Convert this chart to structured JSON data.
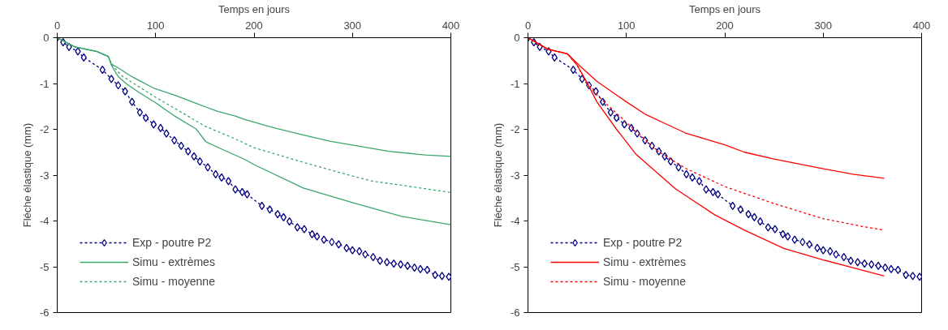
{
  "chart_data": [
    {
      "type": "line",
      "xlabel": "Temps en jours",
      "ylabel": "Fléche élastique (mm)",
      "xlim": [
        0,
        400
      ],
      "ylim": [
        -6,
        0
      ],
      "xticks": [
        0,
        100,
        200,
        300,
        400
      ],
      "yticks": [
        0,
        -1,
        -2,
        -3,
        -4,
        -5,
        -6
      ],
      "grid": false,
      "legend": "bottom left",
      "series": [
        {
          "name": "Exp - poutre P2",
          "color": "#000080",
          "marker": "diamond",
          "line_style": "dotted",
          "x": [
            0,
            6,
            12,
            21,
            27,
            46,
            55,
            62,
            69,
            76,
            84,
            90,
            98,
            105,
            111,
            119,
            126,
            133,
            139,
            145,
            153,
            161,
            167,
            174,
            181,
            188,
            193,
            208,
            216,
            224,
            230,
            236,
            244,
            251,
            259,
            264,
            271,
            279,
            286,
            294,
            300,
            307,
            313,
            321,
            328,
            335,
            342,
            349,
            356,
            363,
            369,
            376,
            384,
            391,
            398
          ],
          "values": [
            0,
            -0.1,
            -0.2,
            -0.3,
            -0.43,
            -0.7,
            -0.9,
            -1.04,
            -1.17,
            -1.4,
            -1.63,
            -1.75,
            -1.89,
            -1.97,
            -2.09,
            -2.24,
            -2.36,
            -2.48,
            -2.59,
            -2.7,
            -2.83,
            -2.98,
            -3.05,
            -3.13,
            -3.31,
            -3.37,
            -3.42,
            -3.67,
            -3.75,
            -3.85,
            -3.92,
            -4.01,
            -4.14,
            -4.18,
            -4.29,
            -4.34,
            -4.41,
            -4.46,
            -4.51,
            -4.59,
            -4.64,
            -4.66,
            -4.73,
            -4.79,
            -4.87,
            -4.9,
            -4.93,
            -4.95,
            -4.98,
            -5.02,
            -5.05,
            -5.07,
            -5.18,
            -5.2,
            -5.22
          ]
        },
        {
          "name": "Simu - extrèmes",
          "color": "#3aa76d",
          "marker": "none",
          "line_style": "solid",
          "x": [
            0,
            18,
            40,
            52,
            55,
            65,
            72,
            81,
            99,
            120,
            141,
            163,
            181,
            190,
            217,
            247,
            277,
            307,
            337,
            374,
            400
          ],
          "values": [
            0,
            -0.2,
            -0.3,
            -0.41,
            -0.57,
            -0.7,
            -0.8,
            -0.91,
            -1.11,
            -1.26,
            -1.43,
            -1.61,
            -1.71,
            -1.78,
            -1.95,
            -2.11,
            -2.26,
            -2.37,
            -2.48,
            -2.56,
            -2.59
          ]
        },
        {
          "color": "#3aa76d",
          "marker": "none",
          "line_style": "solid",
          "x": [
            0,
            18,
            40,
            52,
            55,
            62,
            70,
            80,
            100,
            120,
            141,
            151,
            170,
            190,
            200,
            250,
            300,
            350,
            400
          ],
          "values": [
            0,
            -0.2,
            -0.3,
            -0.41,
            -0.6,
            -0.85,
            -1.0,
            -1.15,
            -1.42,
            -1.72,
            -1.99,
            -2.27,
            -2.46,
            -2.65,
            -2.77,
            -3.28,
            -3.6,
            -3.9,
            -4.08
          ]
        },
        {
          "name": "Simu - moyenne",
          "color": "#3aa76d",
          "marker": "none",
          "line_style": "dotted",
          "x": [
            0,
            18,
            40,
            52,
            56,
            65,
            80,
            100,
            120,
            150,
            180,
            200,
            250,
            300,
            320,
            350,
            375,
            400
          ],
          "values": [
            0,
            -0.2,
            -0.3,
            -0.42,
            -0.6,
            -0.82,
            -1.03,
            -1.3,
            -1.55,
            -1.93,
            -2.2,
            -2.4,
            -2.72,
            -3.02,
            -3.13,
            -3.22,
            -3.3,
            -3.38
          ]
        }
      ]
    },
    {
      "type": "line",
      "xlabel": "Temps en jours",
      "ylabel": "Fléche élastique (mm)",
      "xlim": [
        0,
        400
      ],
      "ylim": [
        -6,
        0
      ],
      "xticks": [
        0,
        100,
        200,
        300,
        400
      ],
      "yticks": [
        0,
        -1,
        -2,
        -3,
        -4,
        -5,
        -6
      ],
      "grid": false,
      "legend": "bottom left",
      "series": [
        {
          "name": "Exp - poutre P2",
          "color": "#000080",
          "marker": "diamond",
          "line_style": "dotted",
          "x": [
            0,
            6,
            12,
            21,
            27,
            46,
            55,
            62,
            69,
            76,
            84,
            90,
            98,
            105,
            111,
            119,
            126,
            133,
            139,
            145,
            153,
            161,
            167,
            174,
            181,
            188,
            193,
            208,
            216,
            224,
            230,
            236,
            244,
            251,
            259,
            264,
            271,
            279,
            286,
            294,
            300,
            307,
            313,
            321,
            328,
            335,
            342,
            349,
            356,
            363,
            369,
            376,
            384,
            391,
            398
          ],
          "values": [
            0,
            -0.1,
            -0.2,
            -0.3,
            -0.43,
            -0.7,
            -0.9,
            -1.04,
            -1.17,
            -1.4,
            -1.63,
            -1.75,
            -1.89,
            -1.97,
            -2.09,
            -2.24,
            -2.36,
            -2.48,
            -2.59,
            -2.7,
            -2.83,
            -2.98,
            -3.05,
            -3.13,
            -3.31,
            -3.37,
            -3.42,
            -3.67,
            -3.75,
            -3.85,
            -3.92,
            -4.01,
            -4.14,
            -4.18,
            -4.29,
            -4.34,
            -4.41,
            -4.46,
            -4.51,
            -4.59,
            -4.64,
            -4.66,
            -4.73,
            -4.79,
            -4.87,
            -4.9,
            -4.93,
            -4.95,
            -4.98,
            -5.02,
            -5.05,
            -5.07,
            -5.18,
            -5.2,
            -5.22
          ]
        },
        {
          "name": "Simu - extrèmes",
          "color": "#ff0000",
          "marker": "none",
          "line_style": "solid",
          "x": [
            0,
            20,
            40,
            52,
            70,
            100,
            120,
            140,
            160,
            200,
            220,
            250,
            300,
            330,
            362
          ],
          "values": [
            0,
            -0.25,
            -0.35,
            -0.6,
            -0.95,
            -1.4,
            -1.68,
            -1.88,
            -2.08,
            -2.34,
            -2.5,
            -2.65,
            -2.86,
            -2.98,
            -3.07
          ]
        },
        {
          "color": "#ff0000",
          "marker": "none",
          "line_style": "solid",
          "x": [
            0,
            20,
            40,
            50,
            60,
            70,
            90,
            110,
            150,
            190,
            220,
            260,
            300,
            330,
            362
          ],
          "values": [
            0,
            -0.25,
            -0.35,
            -0.6,
            -0.98,
            -1.4,
            -2.0,
            -2.55,
            -3.3,
            -3.87,
            -4.2,
            -4.6,
            -4.85,
            -5.02,
            -5.2
          ]
        },
        {
          "name": "Simu - moyenne",
          "color": "#ff0000",
          "marker": "none",
          "line_style": "dotted",
          "x": [
            0,
            20,
            40,
            50,
            60,
            70,
            100,
            130,
            160,
            200,
            250,
            300,
            340,
            362
          ],
          "values": [
            0,
            -0.25,
            -0.35,
            -0.6,
            -1.0,
            -1.25,
            -1.85,
            -2.45,
            -2.85,
            -3.25,
            -3.62,
            -3.95,
            -4.12,
            -4.2
          ]
        }
      ]
    }
  ]
}
